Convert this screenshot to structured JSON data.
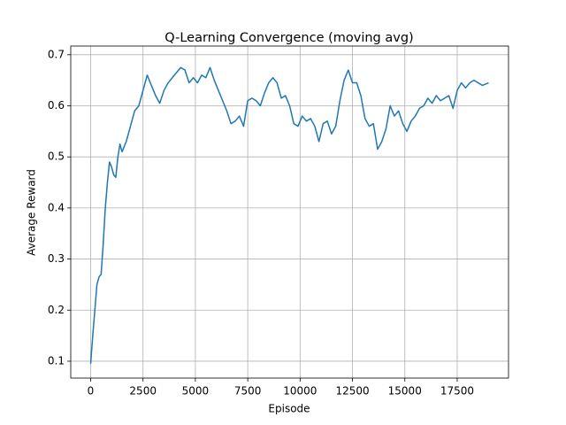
{
  "chart_data": {
    "type": "line",
    "title": "Q-Learning Convergence (moving avg)",
    "x_label": "Episode",
    "y_label": "Average Reward",
    "x": [
      0,
      100,
      200,
      300,
      400,
      500,
      600,
      700,
      800,
      900,
      1000,
      1100,
      1200,
      1300,
      1400,
      1500,
      1700,
      1900,
      2100,
      2300,
      2500,
      2700,
      2900,
      3100,
      3300,
      3500,
      3700,
      3900,
      4100,
      4300,
      4500,
      4700,
      4900,
      5100,
      5300,
      5500,
      5700,
      5900,
      6100,
      6300,
      6500,
      6700,
      6900,
      7100,
      7300,
      7500,
      7700,
      7900,
      8100,
      8300,
      8500,
      8700,
      8900,
      9100,
      9300,
      9500,
      9700,
      9900,
      10100,
      10300,
      10500,
      10700,
      10900,
      11100,
      11300,
      11500,
      11700,
      11900,
      12100,
      12300,
      12500,
      12700,
      12900,
      13100,
      13300,
      13500,
      13700,
      13900,
      14100,
      14300,
      14500,
      14700,
      14900,
      15100,
      15300,
      15500,
      15700,
      15900,
      16100,
      16300,
      16500,
      16700,
      16900,
      17100,
      17300,
      17500,
      17700,
      17900,
      18100,
      18300,
      18500,
      18700,
      19000
    ],
    "series": [
      {
        "name": "moving avg",
        "color": "#1f77b4",
        "values": [
          0.095,
          0.15,
          0.2,
          0.25,
          0.265,
          0.27,
          0.33,
          0.4,
          0.45,
          0.49,
          0.48,
          0.465,
          0.46,
          0.5,
          0.525,
          0.51,
          0.53,
          0.56,
          0.59,
          0.6,
          0.63,
          0.66,
          0.64,
          0.62,
          0.605,
          0.63,
          0.645,
          0.655,
          0.665,
          0.675,
          0.67,
          0.645,
          0.655,
          0.645,
          0.66,
          0.655,
          0.675,
          0.65,
          0.63,
          0.61,
          0.59,
          0.565,
          0.57,
          0.58,
          0.56,
          0.61,
          0.615,
          0.61,
          0.6,
          0.625,
          0.645,
          0.655,
          0.645,
          0.615,
          0.62,
          0.6,
          0.565,
          0.56,
          0.58,
          0.57,
          0.575,
          0.56,
          0.53,
          0.565,
          0.57,
          0.545,
          0.56,
          0.61,
          0.65,
          0.67,
          0.645,
          0.645,
          0.62,
          0.575,
          0.56,
          0.565,
          0.515,
          0.53,
          0.555,
          0.6,
          0.58,
          0.59,
          0.565,
          0.55,
          0.57,
          0.58,
          0.595,
          0.6,
          0.615,
          0.605,
          0.62,
          0.61,
          0.615,
          0.62,
          0.595,
          0.63,
          0.645,
          0.635,
          0.645,
          0.65,
          0.645,
          0.64,
          0.645
        ]
      }
    ],
    "xlim": [
      -950,
      19950
    ],
    "xticks": [
      0,
      2500,
      5000,
      7500,
      10000,
      12500,
      15000,
      17500
    ],
    "ylim": [
      0.067,
      0.717
    ],
    "yticks": [
      0.1,
      0.2,
      0.3,
      0.4,
      0.5,
      0.6,
      0.7
    ],
    "grid": true
  }
}
